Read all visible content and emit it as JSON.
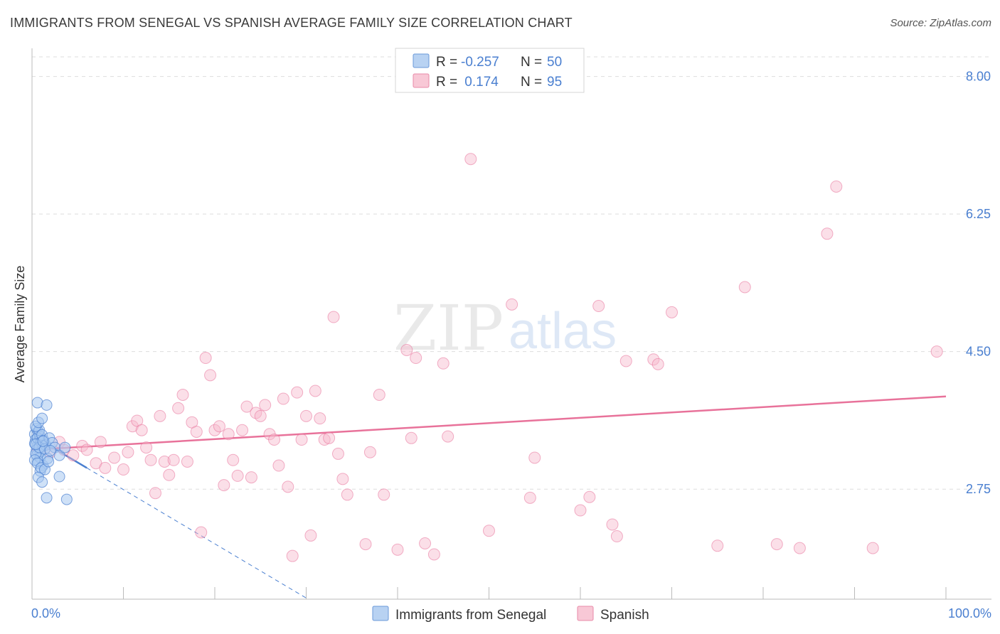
{
  "header": {
    "title": "IMMIGRANTS FROM SENEGAL VS SPANISH AVERAGE FAMILY SIZE CORRELATION CHART",
    "source": "Source: ZipAtlas.com"
  },
  "watermark": {
    "zip": "ZIP",
    "atlas": "atlas"
  },
  "colors": {
    "blue": "#4a7fd0",
    "blue_fill": "#a8c8f0",
    "pink": "#e8729a",
    "pink_fill": "#f6b8cb",
    "grid": "#dddddd",
    "axis": "#bbbbbb"
  },
  "legend_box": {
    "rows": [
      {
        "r_label": "R = ",
        "r_value": "-0.257",
        "n_label": "N = ",
        "n_value": "50"
      },
      {
        "r_label": "R = ",
        "r_value": " 0.174",
        "n_label": "N = ",
        "n_value": "95"
      }
    ]
  },
  "chart_data": {
    "type": "scatter",
    "title": "IMMIGRANTS FROM SENEGAL VS SPANISH AVERAGE FAMILY SIZE CORRELATION CHART",
    "xlabel": "",
    "ylabel": "Average Family Size",
    "xlim": [
      0,
      100
    ],
    "ylim": [
      1.35,
      8.25
    ],
    "x_tick_labels": [
      "0.0%",
      "100.0%"
    ],
    "y_ticks": [
      2.75,
      4.5,
      6.25,
      8.0
    ],
    "y_tick_labels": [
      "2.75",
      "4.50",
      "6.25",
      "8.00"
    ],
    "grid": true,
    "legend_position": "bottom-center",
    "series": [
      {
        "name": "Immigrants from Senegal",
        "r": -0.257,
        "n": 50,
        "trend": {
          "x0": 0.2,
          "y0": 3.42,
          "x1": 6.0,
          "y1": 3.02,
          "dash_to_x": 46.0,
          "dash_to_y": 0.2
        },
        "points": [
          [
            0.3,
            3.45
          ],
          [
            0.4,
            3.38
          ],
          [
            0.5,
            3.52
          ],
          [
            0.6,
            3.3
          ],
          [
            0.7,
            3.48
          ],
          [
            0.8,
            3.36
          ],
          [
            0.9,
            3.42
          ],
          [
            1.0,
            3.28
          ],
          [
            0.3,
            3.33
          ],
          [
            0.5,
            3.25
          ],
          [
            0.6,
            3.4
          ],
          [
            0.8,
            3.5
          ],
          [
            1.0,
            3.35
          ],
          [
            1.2,
            3.3
          ],
          [
            0.4,
            3.55
          ],
          [
            0.7,
            3.6
          ],
          [
            0.9,
            3.22
          ],
          [
            1.1,
            3.44
          ],
          [
            1.3,
            3.37
          ],
          [
            1.5,
            3.31
          ],
          [
            0.5,
            3.18
          ],
          [
            0.7,
            3.1
          ],
          [
            0.9,
            3.15
          ],
          [
            1.2,
            3.05
          ],
          [
            0.6,
            3.85
          ],
          [
            1.6,
            3.82
          ],
          [
            1.1,
            3.65
          ],
          [
            0.4,
            3.2
          ],
          [
            0.8,
            3.28
          ],
          [
            1.4,
            3.26
          ],
          [
            1.7,
            3.14
          ],
          [
            1.9,
            3.4
          ],
          [
            0.3,
            3.12
          ],
          [
            0.6,
            3.08
          ],
          [
            0.9,
            2.98
          ],
          [
            1.0,
            3.02
          ],
          [
            1.4,
            3.0
          ],
          [
            1.8,
            3.1
          ],
          [
            2.2,
            3.34
          ],
          [
            2.5,
            3.28
          ],
          [
            3.0,
            3.18
          ],
          [
            3.6,
            3.28
          ],
          [
            0.7,
            2.9
          ],
          [
            1.1,
            2.84
          ],
          [
            1.6,
            2.64
          ],
          [
            3.8,
            2.62
          ],
          [
            3.0,
            2.91
          ],
          [
            0.4,
            3.32
          ],
          [
            1.2,
            3.36
          ],
          [
            2.0,
            3.24
          ]
        ]
      },
      {
        "name": "Spanish",
        "r": 0.174,
        "n": 95,
        "trend": {
          "x0": 0.0,
          "y0": 3.25,
          "x1": 100.0,
          "y1": 3.93
        },
        "points": [
          [
            1.0,
            3.3
          ],
          [
            2.0,
            3.22
          ],
          [
            3.0,
            3.35
          ],
          [
            3.5,
            3.25
          ],
          [
            4.5,
            3.18
          ],
          [
            5.5,
            3.3
          ],
          [
            6.0,
            3.25
          ],
          [
            7.0,
            3.08
          ],
          [
            7.5,
            3.35
          ],
          [
            8.0,
            3.02
          ],
          [
            9.0,
            3.15
          ],
          [
            10.0,
            3.0
          ],
          [
            10.5,
            3.22
          ],
          [
            11.0,
            3.55
          ],
          [
            11.5,
            3.62
          ],
          [
            12.0,
            3.5
          ],
          [
            12.5,
            3.28
          ],
          [
            13.0,
            3.12
          ],
          [
            13.5,
            2.7
          ],
          [
            14.0,
            3.68
          ],
          [
            14.5,
            3.1
          ],
          [
            15.0,
            2.93
          ],
          [
            15.5,
            3.12
          ],
          [
            16.0,
            3.78
          ],
          [
            16.5,
            3.95
          ],
          [
            17.0,
            3.1
          ],
          [
            17.5,
            3.6
          ],
          [
            18.0,
            3.48
          ],
          [
            18.5,
            2.2
          ],
          [
            19.0,
            4.42
          ],
          [
            19.5,
            4.2
          ],
          [
            20.0,
            3.5
          ],
          [
            20.5,
            3.55
          ],
          [
            21.0,
            2.8
          ],
          [
            21.5,
            3.45
          ],
          [
            22.0,
            3.12
          ],
          [
            22.5,
            2.92
          ],
          [
            23.0,
            3.5
          ],
          [
            23.5,
            3.8
          ],
          [
            24.0,
            2.9
          ],
          [
            24.5,
            3.72
          ],
          [
            25.0,
            3.68
          ],
          [
            25.5,
            3.82
          ],
          [
            26.0,
            3.45
          ],
          [
            26.5,
            3.38
          ],
          [
            27.0,
            3.05
          ],
          [
            27.5,
            3.9
          ],
          [
            28.0,
            2.78
          ],
          [
            28.5,
            1.9
          ],
          [
            29.0,
            3.98
          ],
          [
            29.5,
            3.38
          ],
          [
            30.0,
            3.68
          ],
          [
            30.5,
            2.16
          ],
          [
            31.0,
            4.0
          ],
          [
            31.5,
            3.65
          ],
          [
            32.0,
            3.38
          ],
          [
            32.5,
            3.4
          ],
          [
            33.0,
            4.94
          ],
          [
            33.5,
            3.2
          ],
          [
            34.0,
            2.88
          ],
          [
            34.5,
            2.68
          ],
          [
            36.5,
            2.05
          ],
          [
            37.0,
            3.22
          ],
          [
            38.0,
            3.95
          ],
          [
            38.5,
            2.68
          ],
          [
            40.0,
            1.98
          ],
          [
            41.0,
            4.52
          ],
          [
            42.0,
            4.42
          ],
          [
            43.0,
            2.06
          ],
          [
            44.0,
            1.92
          ],
          [
            45.0,
            4.35
          ],
          [
            45.5,
            3.42
          ],
          [
            48.0,
            6.95
          ],
          [
            50.0,
            2.22
          ],
          [
            52.5,
            5.1
          ],
          [
            54.5,
            2.64
          ],
          [
            60.0,
            2.48
          ],
          [
            62.0,
            5.08
          ],
          [
            65.0,
            4.38
          ],
          [
            68.0,
            4.4
          ],
          [
            68.5,
            4.34
          ],
          [
            70.0,
            5.0
          ],
          [
            75.0,
            2.03
          ],
          [
            78.0,
            5.32
          ],
          [
            81.5,
            2.05
          ],
          [
            84.0,
            2.0
          ],
          [
            87.0,
            6.0
          ],
          [
            88.0,
            6.6
          ],
          [
            92.0,
            2.0
          ],
          [
            99.0,
            4.5
          ],
          [
            41.5,
            3.4
          ],
          [
            55.0,
            3.15
          ],
          [
            61.0,
            2.65
          ],
          [
            63.5,
            2.3
          ],
          [
            64.0,
            2.15
          ]
        ]
      }
    ]
  }
}
